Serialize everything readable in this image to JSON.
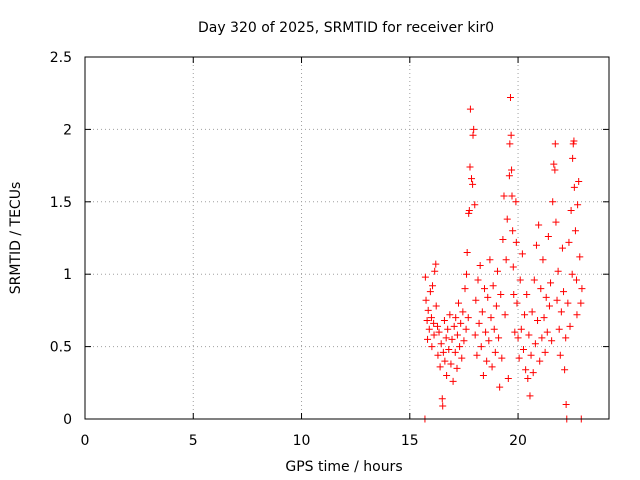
{
  "chart_data": {
    "type": "scatter",
    "title": "Day 320 of 2025, SRMTID for receiver kir0",
    "xlabel": "GPS time / hours",
    "ylabel": "SRMTID / TECUs",
    "xlim": [
      0,
      24.2
    ],
    "ylim": [
      0,
      2.5
    ],
    "xticks": [
      0,
      5,
      10,
      15,
      20
    ],
    "xtick_labels": [
      "0",
      "5",
      "10",
      "15",
      "20"
    ],
    "yticks": [
      0,
      0.5,
      1,
      1.5,
      2,
      2.5
    ],
    "ytick_labels": [
      "0",
      "0.5",
      "1",
      "1.5",
      "2",
      "2.5"
    ],
    "grid": true,
    "marker": "plus",
    "series": [
      {
        "name": "SRMTID",
        "color": "#ff0000",
        "points": [
          [
            15.7,
            0.0
          ],
          [
            15.72,
            0.98
          ],
          [
            15.75,
            0.82
          ],
          [
            15.8,
            0.68
          ],
          [
            15.82,
            0.55
          ],
          [
            15.85,
            0.75
          ],
          [
            15.9,
            0.62
          ],
          [
            15.95,
            0.88
          ],
          [
            16.0,
            0.7
          ],
          [
            16.02,
            0.5
          ],
          [
            16.05,
            0.92
          ],
          [
            16.1,
            0.66
          ],
          [
            16.12,
            0.58
          ],
          [
            16.15,
            1.02
          ],
          [
            16.2,
            1.07
          ],
          [
            16.22,
            0.78
          ],
          [
            16.28,
            0.64
          ],
          [
            16.3,
            0.44
          ],
          [
            16.35,
            0.6
          ],
          [
            16.4,
            0.36
          ],
          [
            16.45,
            0.52
          ],
          [
            16.5,
            0.14
          ],
          [
            16.52,
            0.09
          ],
          [
            16.55,
            0.46
          ],
          [
            16.6,
            0.68
          ],
          [
            16.62,
            0.4
          ],
          [
            16.68,
            0.56
          ],
          [
            16.7,
            0.3
          ],
          [
            16.75,
            0.62
          ],
          [
            16.8,
            0.48
          ],
          [
            16.85,
            0.72
          ],
          [
            16.9,
            0.38
          ],
          [
            16.95,
            0.55
          ],
          [
            17.0,
            0.26
          ],
          [
            17.05,
            0.64
          ],
          [
            17.1,
            0.46
          ],
          [
            17.12,
            0.7
          ],
          [
            17.18,
            0.35
          ],
          [
            17.2,
            0.58
          ],
          [
            17.25,
            0.8
          ],
          [
            17.3,
            0.5
          ],
          [
            17.35,
            0.66
          ],
          [
            17.4,
            0.42
          ],
          [
            17.45,
            0.74
          ],
          [
            17.5,
            0.54
          ],
          [
            17.55,
            0.9
          ],
          [
            17.6,
            0.62
          ],
          [
            17.62,
            1.0
          ],
          [
            17.65,
            1.15
          ],
          [
            17.7,
            0.7
          ],
          [
            17.72,
            1.42
          ],
          [
            17.75,
            1.44
          ],
          [
            17.78,
            1.74
          ],
          [
            17.8,
            2.14
          ],
          [
            17.85,
            1.66
          ],
          [
            17.9,
            1.62
          ],
          [
            17.92,
            1.96
          ],
          [
            17.95,
            2.0
          ],
          [
            18.0,
            1.48
          ],
          [
            18.02,
            0.58
          ],
          [
            18.05,
            0.82
          ],
          [
            18.1,
            0.44
          ],
          [
            18.15,
            0.96
          ],
          [
            18.2,
            0.66
          ],
          [
            18.25,
            1.06
          ],
          [
            18.3,
            0.5
          ],
          [
            18.35,
            0.74
          ],
          [
            18.4,
            0.3
          ],
          [
            18.45,
            0.9
          ],
          [
            18.5,
            0.6
          ],
          [
            18.55,
            0.4
          ],
          [
            18.6,
            0.84
          ],
          [
            18.65,
            0.54
          ],
          [
            18.7,
            1.1
          ],
          [
            18.75,
            0.7
          ],
          [
            18.8,
            0.36
          ],
          [
            18.85,
            0.92
          ],
          [
            18.9,
            0.62
          ],
          [
            18.95,
            0.46
          ],
          [
            19.0,
            0.78
          ],
          [
            19.05,
            1.02
          ],
          [
            19.1,
            0.56
          ],
          [
            19.15,
            0.22
          ],
          [
            19.2,
            0.86
          ],
          [
            19.25,
            0.42
          ],
          [
            19.3,
            1.24
          ],
          [
            19.35,
            1.54
          ],
          [
            19.4,
            0.72
          ],
          [
            19.45,
            1.1
          ],
          [
            19.5,
            1.38
          ],
          [
            19.55,
            0.28
          ],
          [
            19.6,
            1.68
          ],
          [
            19.62,
            1.9
          ],
          [
            19.65,
            2.22
          ],
          [
            19.68,
            1.96
          ],
          [
            19.7,
            1.72
          ],
          [
            19.72,
            1.54
          ],
          [
            19.75,
            1.3
          ],
          [
            19.78,
            1.05
          ],
          [
            19.8,
            0.86
          ],
          [
            19.85,
            0.6
          ],
          [
            19.9,
            1.5
          ],
          [
            19.92,
            1.22
          ],
          [
            19.95,
            0.8
          ],
          [
            20.0,
            0.56
          ],
          [
            20.05,
            0.42
          ],
          [
            20.1,
            0.96
          ],
          [
            20.15,
            0.62
          ],
          [
            20.2,
            1.14
          ],
          [
            20.25,
            0.48
          ],
          [
            20.3,
            0.72
          ],
          [
            20.35,
            0.34
          ],
          [
            20.4,
            0.86
          ],
          [
            20.45,
            0.28
          ],
          [
            20.5,
            0.58
          ],
          [
            20.55,
            0.16
          ],
          [
            20.6,
            0.44
          ],
          [
            20.65,
            0.74
          ],
          [
            20.7,
            0.32
          ],
          [
            20.75,
            0.96
          ],
          [
            20.8,
            0.52
          ],
          [
            20.85,
            1.2
          ],
          [
            20.9,
            0.68
          ],
          [
            20.95,
            1.34
          ],
          [
            21.0,
            0.4
          ],
          [
            21.05,
            0.9
          ],
          [
            21.1,
            0.56
          ],
          [
            21.15,
            1.1
          ],
          [
            21.2,
            0.7
          ],
          [
            21.25,
            0.46
          ],
          [
            21.3,
            0.84
          ],
          [
            21.35,
            0.6
          ],
          [
            21.4,
            1.26
          ],
          [
            21.45,
            0.78
          ],
          [
            21.5,
            0.94
          ],
          [
            21.55,
            0.54
          ],
          [
            21.6,
            1.5
          ],
          [
            21.65,
            1.76
          ],
          [
            21.7,
            1.72
          ],
          [
            21.72,
            1.9
          ],
          [
            21.75,
            1.36
          ],
          [
            21.8,
            0.82
          ],
          [
            21.85,
            1.02
          ],
          [
            21.9,
            0.62
          ],
          [
            21.95,
            0.44
          ],
          [
            22.0,
            0.74
          ],
          [
            22.05,
            1.18
          ],
          [
            22.1,
            0.88
          ],
          [
            22.15,
            0.34
          ],
          [
            22.2,
            0.56
          ],
          [
            22.22,
            0.1
          ],
          [
            22.25,
            0.0
          ],
          [
            22.3,
            0.8
          ],
          [
            22.35,
            1.22
          ],
          [
            22.4,
            0.64
          ],
          [
            22.45,
            1.44
          ],
          [
            22.5,
            1.0
          ],
          [
            22.52,
            1.8
          ],
          [
            22.55,
            1.9
          ],
          [
            22.58,
            1.92
          ],
          [
            22.6,
            1.6
          ],
          [
            22.65,
            1.3
          ],
          [
            22.7,
            0.96
          ],
          [
            22.72,
            0.72
          ],
          [
            22.75,
            1.48
          ],
          [
            22.8,
            1.64
          ],
          [
            22.85,
            1.12
          ],
          [
            22.9,
            0.8
          ],
          [
            22.92,
            0.0
          ],
          [
            22.95,
            0.9
          ]
        ]
      }
    ]
  }
}
